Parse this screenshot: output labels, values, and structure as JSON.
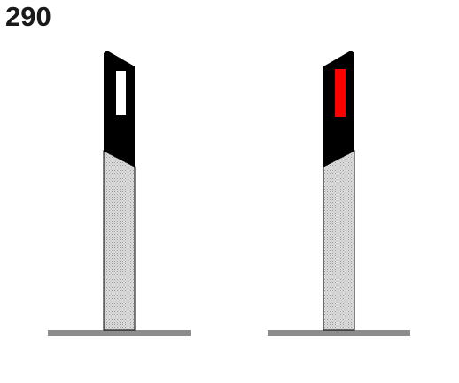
{
  "sign_code": "290",
  "colors": {
    "background": "#ffffff",
    "post_head": "#000000",
    "post_body": "#d6d6d6",
    "outline": "#000000",
    "ground": "#8c8c8c",
    "reflector_left": "#ffffff",
    "reflector_right": "#ff0000"
  },
  "posts": [
    {
      "id": "left",
      "reflector_color": "#ffffff"
    },
    {
      "id": "right",
      "reflector_color": "#ff0000"
    }
  ]
}
